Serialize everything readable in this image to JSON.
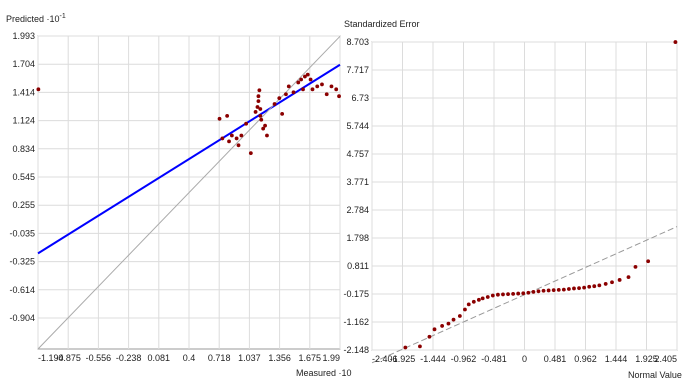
{
  "chart_data": [
    {
      "type": "scatter",
      "ylabel": "Predicted ·10",
      "ylabel_exponent": "-1",
      "xlabel": "Measured ·10",
      "xlim": [
        -1.194,
        1.99
      ],
      "ylim": [
        -1.194,
        1.993
      ],
      "x_tick_labels": [
        "-1.194",
        "-0.875",
        "-0.556",
        "-0.238",
        "0.081",
        "0.4",
        "0.718",
        "1.037",
        "1.356",
        "1.675",
        "1.99"
      ],
      "y_tick_labels": [
        "1.993",
        "1.704",
        "1.414",
        "1.124",
        "0.834",
        "0.545",
        "0.255",
        "-0.035",
        "-0.325",
        "-0.614",
        "-0.904"
      ],
      "grid": true,
      "series": [
        {
          "kind": "points",
          "color": "#8b0000",
          "points": [
            [
              -1.19,
              1.45
            ],
            [
              0.72,
              1.15
            ],
            [
              0.8,
              1.18
            ],
            [
              0.75,
              0.95
            ],
            [
              0.82,
              0.92
            ],
            [
              0.85,
              0.98
            ],
            [
              0.9,
              0.95
            ],
            [
              0.95,
              0.98
            ],
            [
              0.92,
              0.88
            ],
            [
              1.0,
              1.1
            ],
            [
              1.05,
              0.8
            ],
            [
              1.1,
              1.22
            ],
            [
              1.12,
              1.27
            ],
            [
              1.13,
              1.33
            ],
            [
              1.13,
              1.38
            ],
            [
              1.14,
              1.44
            ],
            [
              1.15,
              1.25
            ],
            [
              1.15,
              1.18
            ],
            [
              1.16,
              1.14
            ],
            [
              1.18,
              1.05
            ],
            [
              1.2,
              1.08
            ],
            [
              1.22,
              0.98
            ],
            [
              1.3,
              1.3
            ],
            [
              1.35,
              1.36
            ],
            [
              1.38,
              1.2
            ],
            [
              1.42,
              1.4
            ],
            [
              1.45,
              1.48
            ],
            [
              1.5,
              1.42
            ],
            [
              1.55,
              1.52
            ],
            [
              1.58,
              1.55
            ],
            [
              1.6,
              1.45
            ],
            [
              1.62,
              1.58
            ],
            [
              1.65,
              1.6
            ],
            [
              1.68,
              1.55
            ],
            [
              1.7,
              1.45
            ],
            [
              1.75,
              1.48
            ],
            [
              1.8,
              1.5
            ],
            [
              1.85,
              1.4
            ],
            [
              1.9,
              1.48
            ],
            [
              1.95,
              1.45
            ],
            [
              1.98,
              1.38
            ]
          ]
        },
        {
          "kind": "regression-line",
          "color": "#0000ff",
          "from": [
            -1.194,
            -0.22
          ],
          "to": [
            1.99,
            1.7
          ]
        },
        {
          "kind": "reference-line",
          "color": "#aaaaaa",
          "from": [
            -1.194,
            -1.194
          ],
          "to": [
            1.99,
            1.99
          ]
        }
      ]
    },
    {
      "type": "scatter",
      "ylabel": "Standardized Error",
      "xlabel": "Normal Value",
      "xlim": [
        -2.406,
        2.405
      ],
      "ylim": [
        -2.148,
        8.703
      ],
      "x_tick_labels": [
        "-2.406",
        "-1.925",
        "-1.444",
        "-0.962",
        "-0.481",
        "0",
        "0.481",
        "0.962",
        "1.444",
        "1.925",
        "2.405"
      ],
      "y_tick_labels": [
        "8.703",
        "7.717",
        "6.73",
        "5.744",
        "4.757",
        "3.771",
        "2.784",
        "1.798",
        "0.811",
        "-0.175",
        "-1.162",
        "-2.148"
      ],
      "grid": true,
      "series": [
        {
          "kind": "points",
          "color": "#8b0000",
          "points": [
            [
              -1.88,
              -2.06
            ],
            [
              -1.65,
              -2.02
            ],
            [
              -1.5,
              -1.68
            ],
            [
              -1.42,
              -1.42
            ],
            [
              -1.3,
              -1.3
            ],
            [
              -1.2,
              -1.22
            ],
            [
              -1.12,
              -1.08
            ],
            [
              -1.02,
              -0.95
            ],
            [
              -0.94,
              -0.72
            ],
            [
              -0.88,
              -0.54
            ],
            [
              -0.8,
              -0.45
            ],
            [
              -0.72,
              -0.38
            ],
            [
              -0.66,
              -0.33
            ],
            [
              -0.58,
              -0.28
            ],
            [
              -0.5,
              -0.23
            ],
            [
              -0.42,
              -0.2
            ],
            [
              -0.34,
              -0.19
            ],
            [
              -0.26,
              -0.18
            ],
            [
              -0.18,
              -0.17
            ],
            [
              -0.1,
              -0.16
            ],
            [
              -0.02,
              -0.15
            ],
            [
              0.06,
              -0.13
            ],
            [
              0.14,
              -0.1
            ],
            [
              0.22,
              -0.08
            ],
            [
              0.3,
              -0.06
            ],
            [
              0.38,
              -0.05
            ],
            [
              0.46,
              -0.04
            ],
            [
              0.54,
              -0.03
            ],
            [
              0.62,
              -0.02
            ],
            [
              0.7,
              0.0
            ],
            [
              0.78,
              0.02
            ],
            [
              0.86,
              0.03
            ],
            [
              0.94,
              0.05
            ],
            [
              1.02,
              0.08
            ],
            [
              1.1,
              0.1
            ],
            [
              1.18,
              0.13
            ],
            [
              1.28,
              0.18
            ],
            [
              1.38,
              0.24
            ],
            [
              1.5,
              0.32
            ],
            [
              1.64,
              0.42
            ],
            [
              1.75,
              0.78
            ],
            [
              1.95,
              0.98
            ],
            [
              2.38,
              8.7
            ]
          ]
        },
        {
          "kind": "reference-line",
          "color": "#999999",
          "dashed": true,
          "from": [
            -2.406,
            -2.6
          ],
          "to": [
            2.405,
            2.2
          ]
        }
      ]
    }
  ]
}
